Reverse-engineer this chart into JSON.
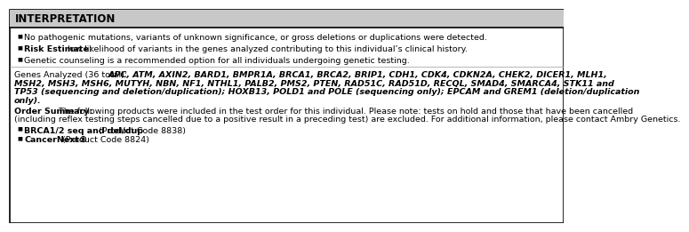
{
  "title": "INTERPRETATION",
  "title_bg": "#c8c8c8",
  "bg_color": "#ffffff",
  "border_color": "#000000",
  "bullet1": "No pathogenic mutations, variants of unknown significance, or gross deletions or duplications were detected.",
  "bullet2_bold": "Risk Estimate:",
  "bullet2_rest": " low likelihood of variants in the genes analyzed contributing to this individual’s clinical history.",
  "bullet3": "Genetic counseling is a recommended option for all individuals undergoing genetic testing.",
  "genes_normal": "Genes Analyzed (36 total): ",
  "genes_line1_italic": "APC, ATM, AXIN2, BARD1, BMPR1A, BRCA1, BRCA2, BRIP1, CDH1, CDK4, CDKN2A, CHEK2, DICER1, MLH1,",
  "genes_line2_italic": "MSH2, MSH3, MSH6, MUTYH, NBN, NF1, NTHL1, PALB2, PMS2, PTEN, RAD51C, RAD51D, RECQL, SMAD4, SMARCA4, STK11 and",
  "genes_line3_italic": "TP53 (sequencing and deletion/duplication); HOXB13, POLD1 and POLE (sequencing only); EPCAM and GREM1 (deletion/duplication",
  "genes_line4_italic": "only).",
  "order_bold": "Order Summary:",
  "order_line1": " The following products were included in the test order for this individual. Please note: tests on hold and those that have been cancelled",
  "order_line2": "(including reflex testing steps cancelled due to a positive result in a preceding test) are excluded. For additional information, please contact Ambry Genetics.",
  "order_bullet1_bold": "BRCA1/2 seq and del/dup",
  "order_bullet1_rest": " (Product Code 8838)",
  "order_bullet2_bold": "CancerNext®",
  "order_bullet2_rest": " (Product Code 8824)",
  "font_size": 6.8,
  "title_font_size": 8.5
}
